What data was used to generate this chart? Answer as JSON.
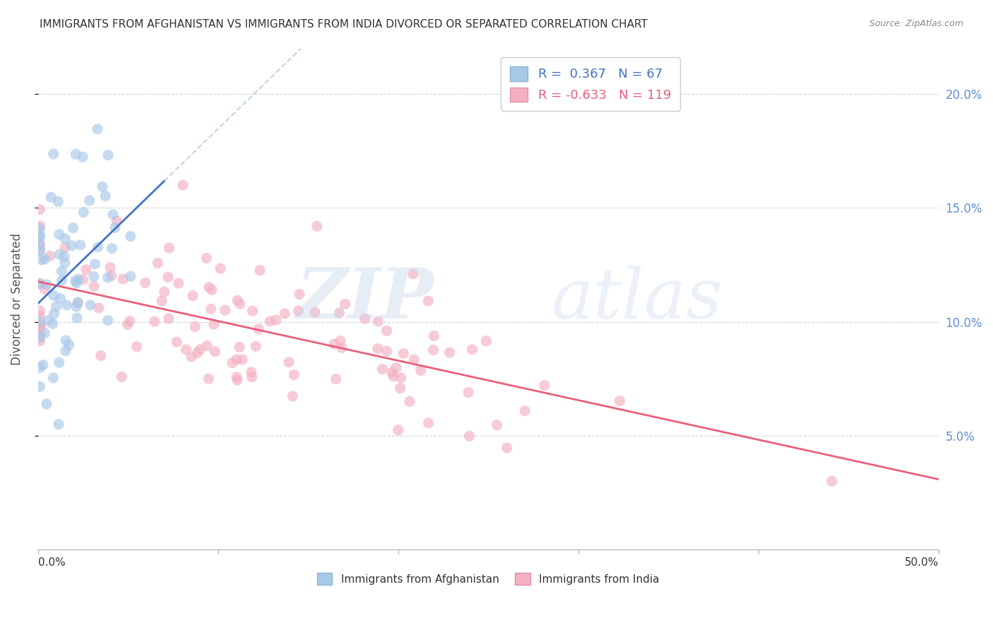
{
  "title": "IMMIGRANTS FROM AFGHANISTAN VS IMMIGRANTS FROM INDIA DIVORCED OR SEPARATED CORRELATION CHART",
  "source": "Source: ZipAtlas.com",
  "ylabel": "Divorced or Separated",
  "afg_color": "#a8c8e8",
  "afg_edge": "none",
  "ind_color": "#f4b0c0",
  "ind_edge": "none",
  "line_afg": "#4472c4",
  "line_ind": "#e8607a",
  "line_dashed_color": "#c0d4ea",
  "watermark_zip_color": "#c8d8ea",
  "watermark_atlas_color": "#c8d8ea",
  "background_color": "#ffffff",
  "grid_color": "#cccccc",
  "title_color": "#333333",
  "right_axis_color": "#6090d0",
  "legend_text_afg": "#4472c4",
  "legend_text_ind": "#e8607a",
  "xlim": [
    0.0,
    0.5
  ],
  "ylim": [
    0.0,
    0.22
  ],
  "yticks": [
    0.05,
    0.1,
    0.15,
    0.2
  ],
  "R_afg": 0.367,
  "N_afg": 67,
  "R_ind": -0.633,
  "N_ind": 119,
  "dot_size": 120,
  "dot_alpha": 0.65
}
